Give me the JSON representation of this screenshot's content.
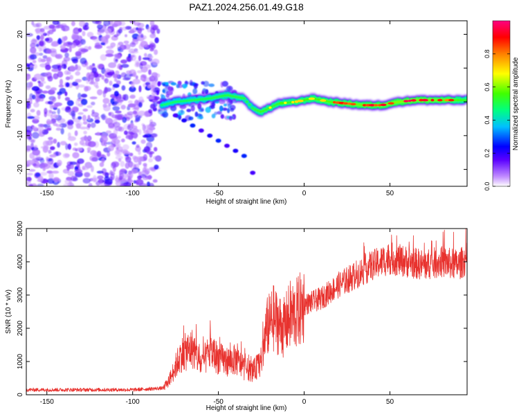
{
  "title": "PAZ1.2024.256.01.49.G18",
  "chart_data": [
    {
      "type": "heatmap",
      "xlabel": "Height of straight line (km)",
      "ylabel": "Frequency (Hz)",
      "xlim": [
        -162,
        95
      ],
      "ylim": [
        -25,
        24
      ],
      "xticks": [
        -150,
        -100,
        -50,
        0,
        50
      ],
      "yticks": [
        -20,
        -10,
        0,
        10,
        20
      ],
      "colorbar": {
        "label": "Normalized spectral amplitude",
        "range": [
          0.0,
          1.0
        ],
        "ticks": [
          0.0,
          0.2,
          0.4,
          0.6,
          0.8
        ]
      },
      "ridge": {
        "x": [
          -83,
          -75,
          -65,
          -55,
          -45,
          -35,
          -30,
          -25,
          -15,
          -5,
          5,
          15,
          25,
          35,
          45,
          55,
          65,
          75,
          85,
          95
        ],
        "freq": [
          -1,
          0,
          0.5,
          1,
          2,
          1,
          -2,
          -3,
          -0.5,
          0,
          1,
          0,
          -0.5,
          -1,
          -1,
          0,
          0.5,
          0.5,
          0.5,
          0.5
        ],
        "amplitude": [
          0.25,
          0.3,
          0.35,
          0.4,
          0.45,
          0.45,
          0.4,
          0.6,
          0.55,
          0.65,
          0.7,
          0.75,
          0.8,
          0.85,
          0.85,
          0.9,
          0.9,
          0.85,
          0.8,
          0.55
        ]
      },
      "noise_region": {
        "x_range": [
          -162,
          -85
        ],
        "freq_range": [
          -25,
          24
        ],
        "amplitude_range": [
          0.05,
          0.25
        ]
      },
      "echo_track": {
        "x": [
          -75,
          -70,
          -65,
          -60,
          -55,
          -50,
          -45,
          -40,
          -35,
          -30
        ],
        "freq": [
          -4,
          -5.5,
          -7,
          -8.5,
          -10,
          -11.5,
          -13,
          -14.5,
          -16,
          -21
        ]
      }
    },
    {
      "type": "line",
      "xlabel": "Height of straight line (km)",
      "ylabel": "SNR (10 * v/v)",
      "xlim": [
        -162,
        95
      ],
      "ylim": [
        0,
        5000
      ],
      "xticks": [
        -150,
        -100,
        -50,
        0,
        50
      ],
      "yticks": [
        0,
        1000,
        2000,
        3000,
        4000,
        5000
      ],
      "color": "#e8322e",
      "envelope": {
        "x": [
          -162,
          -100,
          -82,
          -78,
          -72,
          -65,
          -60,
          -55,
          -50,
          -45,
          -40,
          -35,
          -30,
          -25,
          -22,
          -18,
          -12,
          -8,
          -5,
          0,
          10,
          20,
          30,
          40,
          50,
          60,
          70,
          80,
          90,
          95
        ],
        "y": [
          150,
          150,
          200,
          500,
          1200,
          1400,
          900,
          1300,
          1100,
          1000,
          1050,
          800,
          700,
          1000,
          2000,
          2300,
          2000,
          2400,
          2400,
          2700,
          2900,
          3300,
          3600,
          3900,
          4100,
          4000,
          3900,
          4000,
          3900,
          4100
        ]
      }
    }
  ]
}
